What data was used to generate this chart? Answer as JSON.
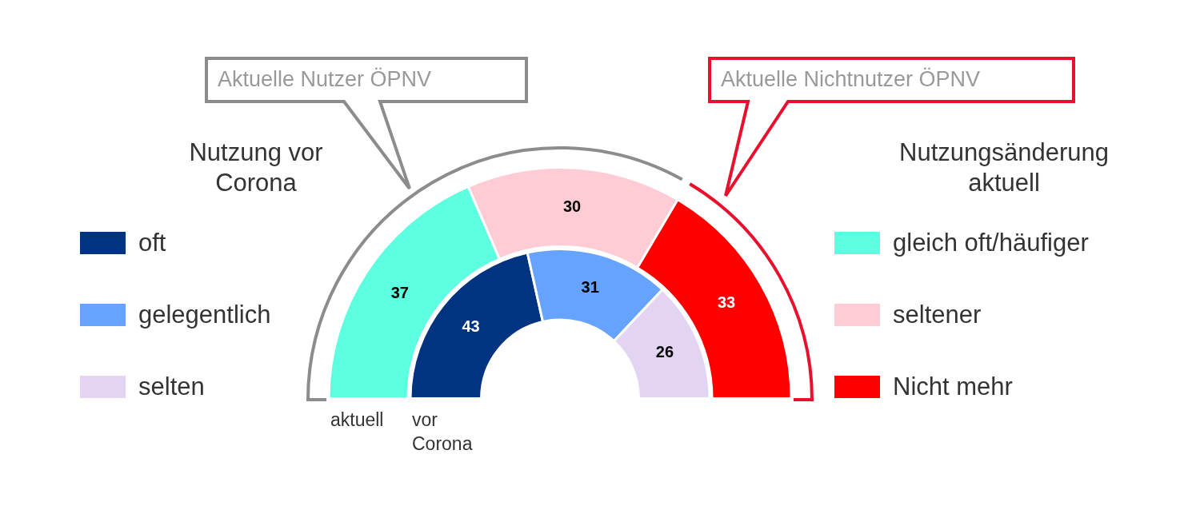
{
  "chart_data": [
    {
      "type": "donut",
      "data_labels": true,
      "legend": "right",
      "legend_title": "Nutzungsänderung aktuell",
      "xlabel": "aktuell",
      "annotations": [
        "Aktuelle Nutzer ÖPNV",
        "Aktuelle Nichtnutzer ÖPNV"
      ],
      "categories": [
        "gleich oft/häufiger",
        "seltener",
        "Nicht mehr"
      ],
      "values": [
        37,
        30,
        33
      ],
      "colors": [
        "#5cffe0",
        "#ffccd5",
        "#ff0000"
      ]
    },
    {
      "type": "donut",
      "data_labels": true,
      "legend": "left",
      "legend_title": "Nutzung vor Corona",
      "xlabel": "vor Corona",
      "categories": [
        "oft",
        "gelegentlich",
        "selten"
      ],
      "values": [
        43,
        31,
        26
      ],
      "colors": [
        "#003380",
        "#66a3ff",
        "#e3d4f4"
      ]
    }
  ]
}
